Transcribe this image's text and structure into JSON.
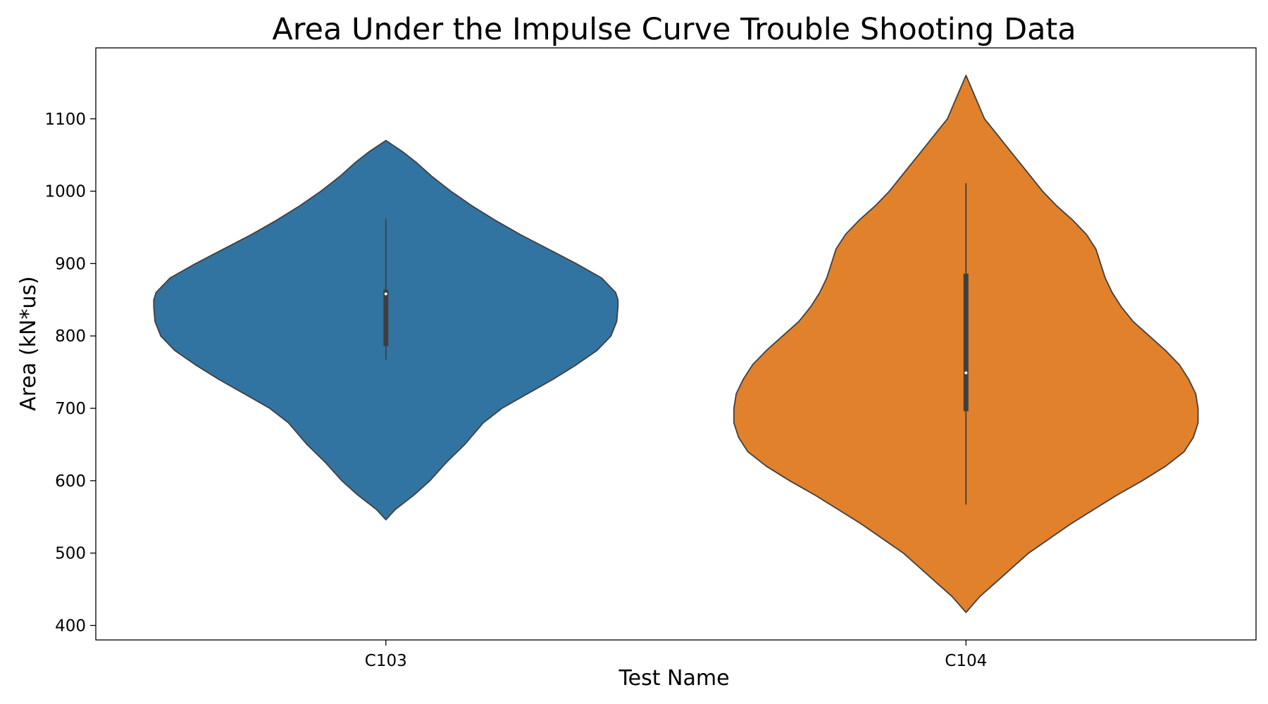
{
  "chart_data": {
    "type": "violin",
    "title": "Area Under the Impulse Curve Trouble Shooting Data",
    "xlabel": "Test Name",
    "ylabel": "Area (kN*us)",
    "ylim": [
      380,
      1198
    ],
    "yticks": [
      400,
      500,
      600,
      700,
      800,
      900,
      1000,
      1100
    ],
    "grid": false,
    "legend": "none",
    "categories": [
      "C103",
      "C104"
    ],
    "series": [
      {
        "category": "C103",
        "color": "#3274a1",
        "range": [
          546,
          1070
        ],
        "whisker": [
          767,
          962
        ],
        "q1": 786,
        "median": 858,
        "q3": 864,
        "density": [
          [
            546,
            0.0
          ],
          [
            560,
            0.04
          ],
          [
            580,
            0.12
          ],
          [
            600,
            0.19
          ],
          [
            625,
            0.26
          ],
          [
            650,
            0.34
          ],
          [
            680,
            0.42
          ],
          [
            700,
            0.5
          ],
          [
            720,
            0.61
          ],
          [
            740,
            0.72
          ],
          [
            760,
            0.82
          ],
          [
            780,
            0.91
          ],
          [
            800,
            0.97
          ],
          [
            820,
            0.995
          ],
          [
            840,
            1.0
          ],
          [
            850,
            1.0
          ],
          [
            860,
            0.99
          ],
          [
            880,
            0.93
          ],
          [
            900,
            0.82
          ],
          [
            920,
            0.7
          ],
          [
            940,
            0.58
          ],
          [
            960,
            0.47
          ],
          [
            980,
            0.37
          ],
          [
            1000,
            0.28
          ],
          [
            1020,
            0.2
          ],
          [
            1040,
            0.13
          ],
          [
            1055,
            0.07
          ],
          [
            1070,
            0.0
          ]
        ]
      },
      {
        "category": "C104",
        "color": "#e1812c",
        "range": [
          418,
          1160
        ],
        "whisker": [
          567,
          1011
        ],
        "q1": 696,
        "median": 749,
        "q3": 886,
        "density": [
          [
            418,
            0.0
          ],
          [
            440,
            0.06
          ],
          [
            460,
            0.13
          ],
          [
            480,
            0.2
          ],
          [
            500,
            0.27
          ],
          [
            520,
            0.36
          ],
          [
            540,
            0.45
          ],
          [
            560,
            0.55
          ],
          [
            580,
            0.65
          ],
          [
            600,
            0.76
          ],
          [
            620,
            0.86
          ],
          [
            640,
            0.94
          ],
          [
            660,
            0.98
          ],
          [
            680,
            1.0
          ],
          [
            700,
            1.0
          ],
          [
            720,
            0.99
          ],
          [
            740,
            0.96
          ],
          [
            760,
            0.92
          ],
          [
            780,
            0.86
          ],
          [
            800,
            0.79
          ],
          [
            820,
            0.72
          ],
          [
            840,
            0.67
          ],
          [
            860,
            0.63
          ],
          [
            880,
            0.6
          ],
          [
            900,
            0.58
          ],
          [
            920,
            0.56
          ],
          [
            940,
            0.52
          ],
          [
            960,
            0.46
          ],
          [
            980,
            0.39
          ],
          [
            1000,
            0.33
          ],
          [
            1020,
            0.28
          ],
          [
            1040,
            0.23
          ],
          [
            1060,
            0.18
          ],
          [
            1080,
            0.13
          ],
          [
            1100,
            0.08
          ],
          [
            1130,
            0.04
          ],
          [
            1160,
            0.0
          ]
        ]
      }
    ]
  }
}
